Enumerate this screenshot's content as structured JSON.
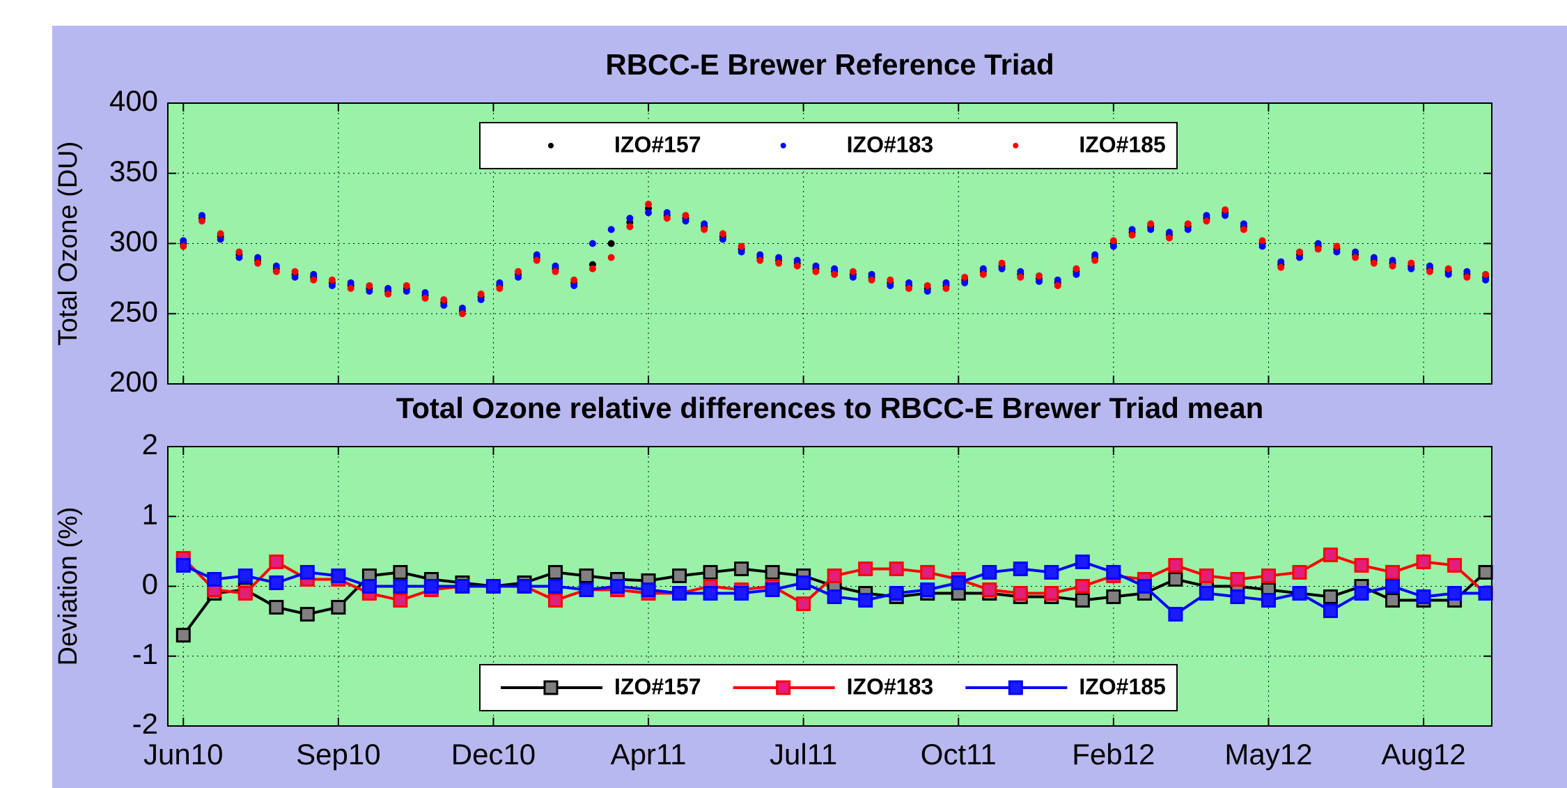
{
  "chart_data": [
    {
      "type": "scatter",
      "title": "RBCC-E Brewer Reference Triad",
      "y_label": "Total Ozone (DU)",
      "x": [
        0,
        12,
        24,
        36,
        48,
        60,
        72,
        84,
        96,
        108,
        120,
        132,
        144,
        156,
        168,
        180,
        192,
        204,
        216,
        228,
        240,
        252,
        264,
        276,
        288,
        300,
        312,
        324,
        336,
        348,
        360,
        372,
        384,
        396,
        408,
        420,
        432,
        444,
        456,
        468,
        480,
        492,
        504,
        516,
        528,
        540,
        552,
        564,
        576,
        588,
        600,
        612,
        624,
        636,
        648,
        660,
        672,
        684,
        696,
        708,
        720,
        732,
        744,
        756,
        768,
        780,
        792,
        804,
        816,
        828,
        840
      ],
      "xlim": [
        -10,
        844
      ],
      "xticks": [
        0,
        100,
        200,
        300,
        400,
        500,
        600,
        700,
        800
      ],
      "ylim": [
        200,
        400
      ],
      "yticks": [
        200,
        250,
        300,
        350,
        400
      ],
      "grid": true,
      "legend": "top",
      "series": [
        {
          "name": "IZO#157",
          "color": "#000000",
          "values": [
            300,
            318,
            305,
            292,
            288,
            282,
            278,
            276,
            272,
            270,
            268,
            266,
            268,
            263,
            258,
            252,
            262,
            270,
            278,
            290,
            282,
            272,
            285,
            300,
            315,
            325,
            320,
            318,
            312,
            305,
            296,
            290,
            288,
            286,
            282,
            280,
            278,
            276,
            272,
            270,
            268,
            270,
            274,
            280,
            284,
            278,
            275,
            272,
            280,
            290,
            300,
            308,
            312,
            306,
            312,
            318,
            322,
            312,
            300,
            285,
            292,
            298,
            296,
            292,
            288,
            286,
            284,
            282,
            280,
            278,
            276
          ]
        },
        {
          "name": "IZO#183",
          "color": "#0000ff",
          "values": [
            302,
            320,
            303,
            290,
            290,
            284,
            276,
            278,
            270,
            272,
            266,
            268,
            266,
            265,
            256,
            254,
            260,
            272,
            276,
            292,
            284,
            270,
            300,
            310,
            318,
            322,
            322,
            316,
            314,
            303,
            294,
            292,
            290,
            288,
            284,
            282,
            276,
            278,
            270,
            272,
            266,
            272,
            272,
            282,
            282,
            280,
            273,
            274,
            278,
            292,
            298,
            310,
            310,
            308,
            310,
            320,
            320,
            314,
            298,
            287,
            290,
            300,
            294,
            294,
            290,
            288,
            282,
            284,
            278,
            280,
            274
          ]
        },
        {
          "name": "IZO#185",
          "color": "#ff0000",
          "values": [
            298,
            316,
            307,
            294,
            286,
            280,
            280,
            274,
            274,
            268,
            270,
            264,
            270,
            261,
            260,
            250,
            264,
            268,
            280,
            288,
            280,
            274,
            282,
            290,
            312,
            328,
            318,
            320,
            310,
            307,
            298,
            288,
            286,
            284,
            280,
            278,
            280,
            274,
            274,
            268,
            270,
            268,
            276,
            278,
            286,
            276,
            277,
            270,
            282,
            288,
            302,
            306,
            314,
            304,
            314,
            316,
            324,
            310,
            302,
            283,
            294,
            296,
            298,
            290,
            286,
            284,
            286,
            280,
            282,
            276,
            278
          ]
        }
      ]
    },
    {
      "type": "line",
      "title": "Total Ozone relative differences to RBCC-E Brewer Triad mean",
      "y_label": "Deviation (%)",
      "x": [
        0,
        20,
        40,
        60,
        80,
        100,
        120,
        140,
        160,
        180,
        200,
        220,
        240,
        260,
        280,
        300,
        320,
        340,
        360,
        380,
        400,
        420,
        440,
        460,
        480,
        500,
        520,
        540,
        560,
        580,
        600,
        620,
        640,
        660,
        680,
        700,
        720,
        740,
        760,
        780,
        800,
        820,
        840
      ],
      "xlim": [
        -10,
        844
      ],
      "xticks": [
        {
          "value": 0,
          "label": "Jun10"
        },
        {
          "value": 100,
          "label": "Sep10"
        },
        {
          "value": 200,
          "label": "Dec10"
        },
        {
          "value": 300,
          "label": "Apr11"
        },
        {
          "value": 400,
          "label": "Jul11"
        },
        {
          "value": 500,
          "label": "Oct11"
        },
        {
          "value": 600,
          "label": "Feb12"
        },
        {
          "value": 700,
          "label": "May12"
        },
        {
          "value": 800,
          "label": "Aug12"
        }
      ],
      "ylim": [
        -2,
        2
      ],
      "yticks": [
        -2,
        -1,
        0,
        1,
        2
      ],
      "grid": true,
      "legend": "bottom",
      "series": [
        {
          "name": "IZO#157",
          "color": "#000000",
          "marker_color": "#808080",
          "values": [
            -0.7,
            -0.1,
            -0.05,
            -0.3,
            -0.4,
            -0.3,
            0.15,
            0.2,
            0.1,
            0.05,
            0.0,
            0.05,
            0.2,
            0.15,
            0.1,
            0.08,
            0.15,
            0.2,
            0.25,
            0.2,
            0.15,
            0.0,
            -0.1,
            -0.15,
            -0.1,
            -0.1,
            -0.1,
            -0.15,
            -0.15,
            -0.2,
            -0.15,
            -0.1,
            0.1,
            0.0,
            0.0,
            -0.05,
            -0.1,
            -0.15,
            0.0,
            -0.2,
            -0.2,
            -0.2,
            0.2
          ]
        },
        {
          "name": "IZO#183",
          "color": "#ff0000",
          "marker_color": "#e0207a",
          "values": [
            0.4,
            -0.05,
            -0.1,
            0.35,
            0.1,
            0.1,
            -0.1,
            -0.2,
            -0.05,
            0.0,
            0.0,
            0.0,
            -0.2,
            -0.05,
            -0.05,
            -0.1,
            -0.1,
            0.0,
            -0.05,
            0.0,
            -0.25,
            0.15,
            0.25,
            0.25,
            0.2,
            0.1,
            -0.05,
            -0.1,
            -0.1,
            0.0,
            0.15,
            0.1,
            0.3,
            0.15,
            0.1,
            0.15,
            0.2,
            0.45,
            0.3,
            0.2,
            0.35,
            0.3,
            -0.1
          ]
        },
        {
          "name": "IZO#185",
          "color": "#0000ff",
          "marker_color": "#1a1aff",
          "values": [
            0.3,
            0.1,
            0.15,
            0.05,
            0.2,
            0.15,
            0.0,
            0.0,
            0.0,
            0.0,
            0.0,
            0.0,
            0.0,
            -0.05,
            0.0,
            -0.05,
            -0.1,
            -0.1,
            -0.1,
            -0.05,
            0.05,
            -0.15,
            -0.2,
            -0.1,
            -0.05,
            0.05,
            0.2,
            0.25,
            0.2,
            0.35,
            0.2,
            0.0,
            -0.4,
            -0.1,
            -0.15,
            -0.2,
            -0.1,
            -0.35,
            -0.1,
            0.0,
            -0.15,
            -0.1,
            -0.1
          ]
        }
      ]
    }
  ]
}
